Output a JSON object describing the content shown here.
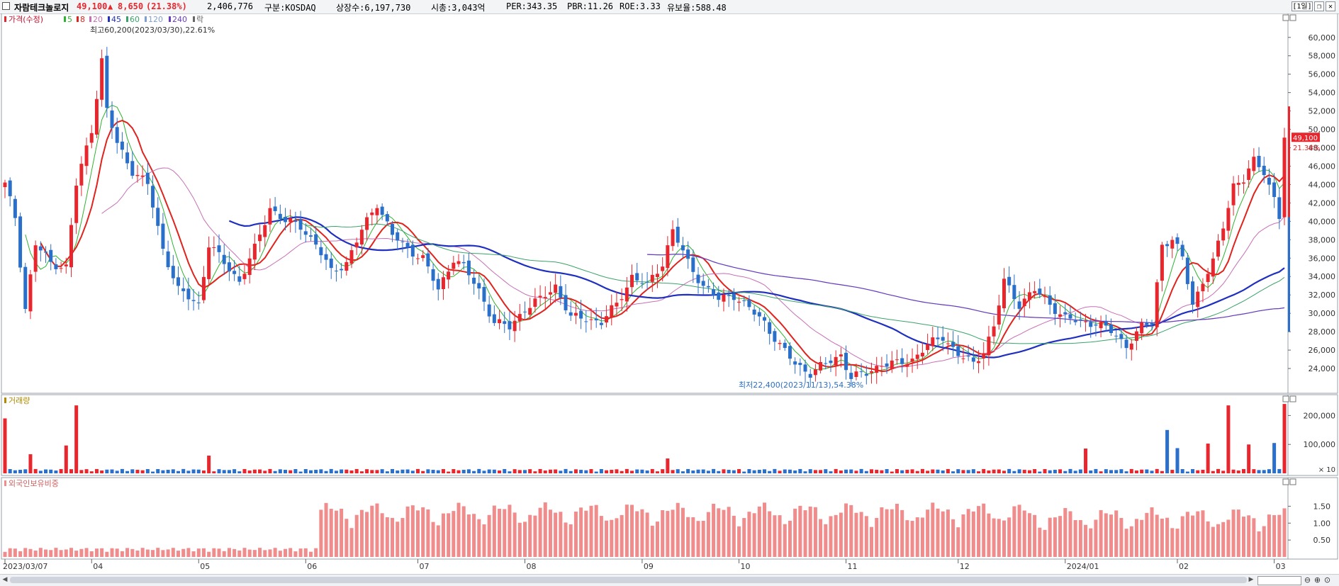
{
  "header": {
    "name": "자람테크놀로지",
    "price": "49,100",
    "change_arrow": "▲",
    "change": "8,650",
    "change_pct": "(21.38%)",
    "volume": "2,406,776",
    "market": "구분:KOSDAQ",
    "shares": "상장수:6,197,730",
    "mktcap": "시총:3,043억",
    "per": "PER:343.35",
    "pbr": "PBR:11.26",
    "roe": "ROE:3.33",
    "float": "유보율:588.48",
    "period_button": "[1일]"
  },
  "colors": {
    "up": "#e8262d",
    "down": "#2a6fc9",
    "ma5": "#2fb32f",
    "ma8": "#e0231c",
    "ma20": "#c770b5",
    "ma45": "#1f2fbf",
    "ma60": "#3aa36a",
    "ma120": "#7f9fd4",
    "ma240": "#6a3bbf",
    "foreign": "#f08c8c"
  },
  "legend": {
    "price_title": "가격(수정)",
    "items": [
      {
        "label": "5",
        "color": "#2fb32f"
      },
      {
        "label": "8",
        "color": "#e0231c"
      },
      {
        "label": "20",
        "color": "#c770b5"
      },
      {
        "label": "45",
        "color": "#1f2fbf"
      },
      {
        "label": "60",
        "color": "#3aa36a"
      },
      {
        "label": "120",
        "color": "#7f9fd4"
      },
      {
        "label": "240",
        "color": "#6a3bbf"
      },
      {
        "label": "락",
        "color": "#666666"
      }
    ],
    "volume_title": "거래량",
    "foreign_title": "외국인보유비중"
  },
  "chart_data": {
    "type": "candlestick",
    "price_axis": {
      "min": 22000,
      "max": 61600,
      "ticks": [
        "60,000",
        "58,000",
        "56,000",
        "54,000",
        "52,000",
        "50,000",
        "48,000",
        "46,000",
        "44,000",
        "42,000",
        "40,000",
        "38,000",
        "36,000",
        "34,000",
        "32,000",
        "30,000",
        "28,000",
        "26,000",
        "24,000"
      ]
    },
    "volume_axis": {
      "min": 0,
      "max": 250000,
      "ticks": [
        "200,000",
        "100,000"
      ],
      "unit_label": "× 10"
    },
    "foreign_axis": {
      "min": 0,
      "max": 2.2,
      "ticks": [
        "1.50",
        "1.00",
        "0.50"
      ]
    },
    "x_labels": [
      "2023/03/07",
      "04",
      "05",
      "06",
      "07",
      "08",
      "09",
      "10",
      "11",
      "12",
      "2024/01",
      "02",
      "03"
    ],
    "x_label_days": [
      0,
      17,
      38,
      59,
      81,
      102,
      125,
      144,
      165,
      187,
      208,
      230,
      249
    ],
    "annotation_high": "최고60,200(2023/03/30),22.61%",
    "annotation_low": "최저22,400(2023/11/13),54.38%",
    "last_price_label": "49,100",
    "last_pct_label": "21.38%",
    "close_anchors": [
      [
        0,
        44000
      ],
      [
        2,
        40500
      ],
      [
        4,
        30500
      ],
      [
        6,
        37500
      ],
      [
        9,
        35500
      ],
      [
        12,
        35000
      ],
      [
        14,
        44000
      ],
      [
        17,
        50000
      ],
      [
        19,
        57500
      ],
      [
        20,
        52000
      ],
      [
        22,
        48500
      ],
      [
        25,
        45500
      ],
      [
        28,
        44000
      ],
      [
        31,
        37000
      ],
      [
        34,
        32500
      ],
      [
        38,
        31000
      ],
      [
        40,
        37500
      ],
      [
        43,
        35500
      ],
      [
        46,
        33500
      ],
      [
        49,
        37000
      ],
      [
        52,
        41500
      ],
      [
        55,
        40000
      ],
      [
        58,
        39500
      ],
      [
        61,
        37500
      ],
      [
        64,
        34500
      ],
      [
        67,
        35500
      ],
      [
        70,
        39000
      ],
      [
        73,
        42000
      ],
      [
        76,
        38500
      ],
      [
        79,
        37000
      ],
      [
        82,
        36000
      ],
      [
        85,
        32500
      ],
      [
        88,
        36000
      ],
      [
        90,
        35000
      ],
      [
        93,
        32500
      ],
      [
        96,
        29000
      ],
      [
        99,
        28500
      ],
      [
        102,
        30500
      ],
      [
        105,
        31500
      ],
      [
        108,
        33000
      ],
      [
        111,
        29500
      ],
      [
        114,
        29500
      ],
      [
        117,
        29000
      ],
      [
        120,
        31000
      ],
      [
        123,
        34000
      ],
      [
        126,
        33000
      ],
      [
        129,
        35500
      ],
      [
        131,
        39000
      ],
      [
        134,
        35500
      ],
      [
        137,
        33000
      ],
      [
        140,
        31500
      ],
      [
        143,
        32000
      ],
      [
        146,
        30500
      ],
      [
        149,
        29000
      ],
      [
        152,
        26500
      ],
      [
        155,
        24500
      ],
      [
        158,
        23500
      ],
      [
        161,
        24500
      ],
      [
        164,
        25500
      ],
      [
        166,
        23000
      ],
      [
        169,
        23500
      ],
      [
        172,
        24500
      ],
      [
        175,
        24500
      ],
      [
        178,
        25000
      ],
      [
        181,
        26500
      ],
      [
        184,
        27500
      ],
      [
        187,
        25500
      ],
      [
        190,
        24500
      ],
      [
        192,
        26000
      ],
      [
        194,
        28500
      ],
      [
        196,
        33500
      ],
      [
        199,
        31000
      ],
      [
        202,
        32500
      ],
      [
        205,
        31000
      ],
      [
        208,
        29500
      ],
      [
        211,
        29000
      ],
      [
        214,
        29000
      ],
      [
        217,
        28000
      ],
      [
        220,
        26500
      ],
      [
        223,
        28500
      ],
      [
        225,
        29000
      ],
      [
        227,
        37500
      ],
      [
        229,
        38000
      ],
      [
        231,
        36000
      ],
      [
        233,
        31000
      ],
      [
        235,
        33500
      ],
      [
        237,
        35500
      ],
      [
        239,
        39500
      ],
      [
        241,
        44000
      ],
      [
        243,
        44500
      ],
      [
        245,
        46500
      ],
      [
        247,
        45500
      ],
      [
        249,
        42500
      ],
      [
        250,
        40450
      ],
      [
        251,
        49100
      ]
    ],
    "highlight_volume_days": [
      0,
      5,
      12,
      14,
      40,
      130,
      212,
      228,
      230,
      236,
      240,
      244,
      249,
      251
    ]
  }
}
